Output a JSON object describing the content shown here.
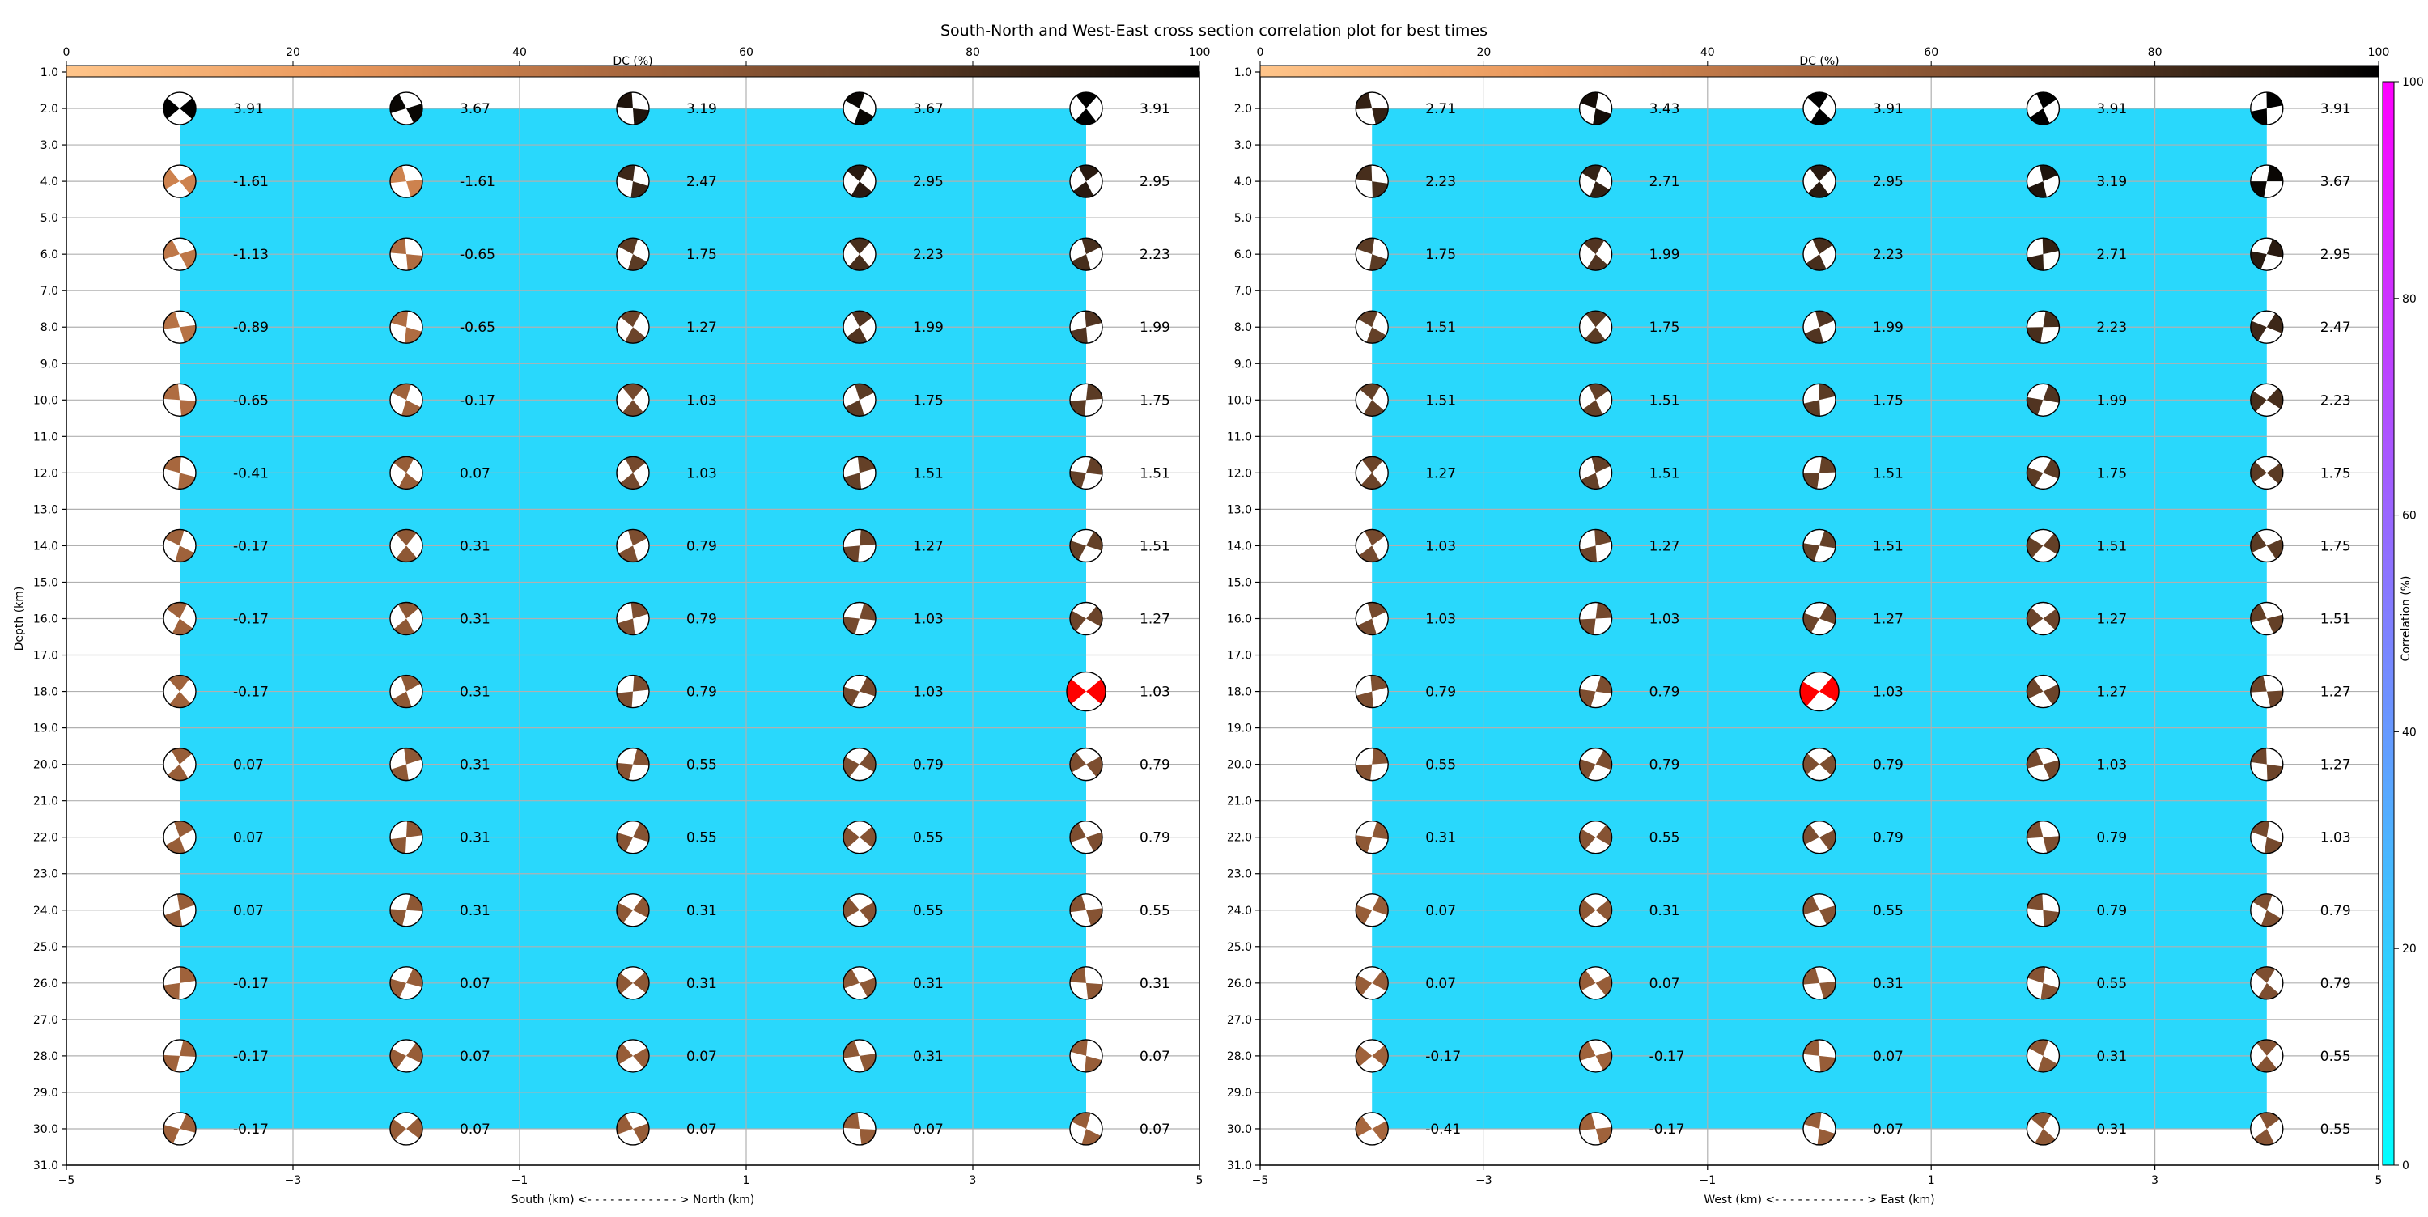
{
  "chart_data": {
    "type": "scatter",
    "title": "South-North and West-East cross section correlation plot for best times",
    "y_label": "Depth (km)",
    "y_lim": [
      1.0,
      31.0
    ],
    "y_ticks": [
      "1.0",
      "2.0",
      "3.0",
      "4.0",
      "5.0",
      "6.0",
      "7.0",
      "8.0",
      "9.0",
      "10.0",
      "11.0",
      "12.0",
      "13.0",
      "14.0",
      "15.0",
      "16.0",
      "17.0",
      "18.0",
      "19.0",
      "20.0",
      "21.0",
      "22.0",
      "23.0",
      "24.0",
      "25.0",
      "26.0",
      "27.0",
      "28.0",
      "29.0",
      "30.0",
      "31.0"
    ],
    "x_ticks": [
      "−5",
      "−3",
      "−1",
      "1",
      "3",
      "5"
    ],
    "x_lim": [
      -5,
      5
    ],
    "depths": [
      2,
      4,
      6,
      8,
      10,
      12,
      14,
      16,
      18,
      20,
      22,
      24,
      26,
      28,
      30
    ],
    "marker_columns": [
      -4,
      -2,
      0,
      2,
      4
    ],
    "grid": true,
    "dc_colorbar": {
      "label": "DC (%)",
      "ticks": [
        "0",
        "20",
        "40",
        "60",
        "80",
        "100"
      ],
      "colors": [
        "#ffc58a",
        "#e8965a",
        "#a5653d",
        "#5a3a24",
        "#000000"
      ]
    },
    "correlation_colorbar": {
      "label": "Correlation (%)",
      "ticks": [
        "0",
        "20",
        "40",
        "60",
        "80",
        "100"
      ],
      "colors": [
        "#00ffff",
        "#ff00ff"
      ]
    },
    "panels": [
      {
        "name": "south-north",
        "x_label": "South (km) <- - - - - - - - - - - - > North (km)",
        "highlight": {
          "x": 4,
          "depth": 18
        },
        "values": [
          [
            "3.91",
            "-1.61",
            "-1.13",
            "-0.89",
            "-0.65",
            "-0.41",
            "-0.17",
            "-0.17",
            "-0.17",
            "0.07",
            "0.07",
            "0.07",
            "-0.17",
            "-0.17",
            "-0.17"
          ],
          [
            "3.67",
            "-1.61",
            "-0.65",
            "-0.65",
            "-0.17",
            "0.07",
            "0.31",
            "0.31",
            "0.31",
            "0.31",
            "0.31",
            "0.31",
            "0.07",
            "0.07",
            "0.07"
          ],
          [
            "3.19",
            "2.47",
            "1.75",
            "1.27",
            "1.03",
            "1.03",
            "0.79",
            "0.79",
            "0.79",
            "0.55",
            "0.55",
            "0.31",
            "0.31",
            "0.07",
            "0.07"
          ],
          [
            "3.67",
            "2.95",
            "2.23",
            "1.99",
            "1.75",
            "1.51",
            "1.27",
            "1.03",
            "1.03",
            "0.79",
            "0.55",
            "0.55",
            "0.31",
            "0.31",
            "0.07"
          ],
          [
            "3.91",
            "2.95",
            "2.23",
            "1.99",
            "1.75",
            "1.51",
            "1.51",
            "1.27",
            "1.03",
            "0.79",
            "0.79",
            "0.55",
            "0.31",
            "0.07",
            "0.07"
          ]
        ]
      },
      {
        "name": "west-east",
        "x_label": "West (km) <- - - - - - - - - - - - > East (km)",
        "highlight": {
          "x": 0,
          "depth": 18
        },
        "values": [
          [
            "2.71",
            "2.23",
            "1.75",
            "1.51",
            "1.51",
            "1.27",
            "1.03",
            "1.03",
            "0.79",
            "0.55",
            "0.31",
            "0.07",
            "0.07",
            "-0.17",
            "-0.41"
          ],
          [
            "3.43",
            "2.71",
            "1.99",
            "1.75",
            "1.51",
            "1.51",
            "1.27",
            "1.03",
            "0.79",
            "0.79",
            "0.55",
            "0.31",
            "0.07",
            "-0.17",
            "-0.17"
          ],
          [
            "3.91",
            "2.95",
            "2.23",
            "1.99",
            "1.75",
            "1.51",
            "1.51",
            "1.27",
            "1.03",
            "0.79",
            "0.79",
            "0.55",
            "0.31",
            "0.07",
            "0.07"
          ],
          [
            "3.91",
            "3.19",
            "2.71",
            "2.23",
            "1.99",
            "1.75",
            "1.51",
            "1.27",
            "1.27",
            "1.03",
            "0.79",
            "0.79",
            "0.55",
            "0.31",
            "0.31"
          ],
          [
            "3.91",
            "3.67",
            "2.95",
            "2.47",
            "2.23",
            "1.75",
            "1.75",
            "1.51",
            "1.27",
            "1.27",
            "1.03",
            "0.79",
            "0.79",
            "0.55",
            "0.55"
          ]
        ]
      }
    ],
    "field_color": "#29d8fc",
    "highlight_color": "#ff0000"
  }
}
